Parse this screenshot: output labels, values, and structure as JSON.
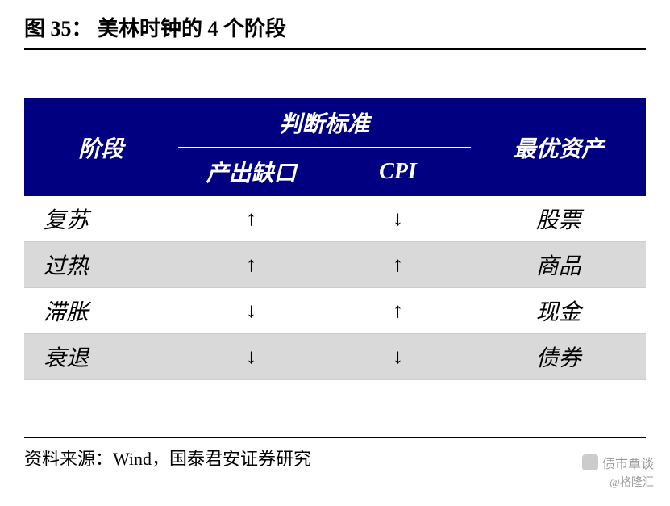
{
  "figure": {
    "title": "图 35：  美林时钟的 4 个阶段"
  },
  "table": {
    "header": {
      "stage": "阶段",
      "criteria": "判断标准",
      "sub1": "产出缺口",
      "sub2": "CPI",
      "asset": "最优资产"
    },
    "rows": {
      "r0": {
        "stage": "复苏",
        "gap": "↑",
        "cpi": "↓",
        "asset": "股票"
      },
      "r1": {
        "stage": "过热",
        "gap": "↑",
        "cpi": "↑",
        "asset": "商品"
      },
      "r2": {
        "stage": "滞胀",
        "gap": "↓",
        "cpi": "↑",
        "asset": "现金"
      },
      "r3": {
        "stage": "衰退",
        "gap": "↓",
        "cpi": "↓",
        "asset": "债券"
      }
    }
  },
  "footer": {
    "source": "资料来源：Wind，国泰君安证券研究"
  },
  "watermark": {
    "main": "债市覃谈",
    "sub": "@格隆汇"
  },
  "styling": {
    "header_bg": "#000080",
    "header_text": "#ffffff",
    "alt_row_bg": "#d9d9d9",
    "body_text": "#000000",
    "border_color": "#000000",
    "title_fontsize": 26,
    "table_fontsize": 28,
    "footer_fontsize": 22
  }
}
